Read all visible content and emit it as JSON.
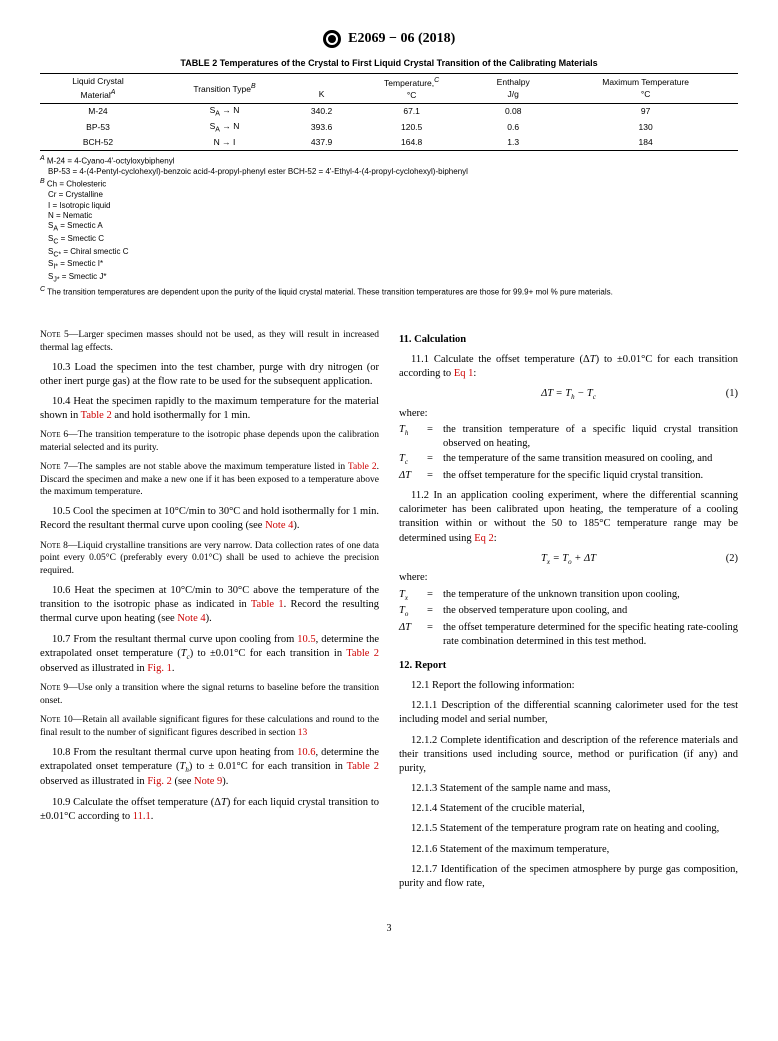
{
  "header": {
    "designation": "E2069 − 06 (2018)"
  },
  "table2": {
    "title": "TABLE 2 Temperatures of the Crystal to First Liquid Crystal Transition of the Calibrating Materials",
    "headers": {
      "c1a": "Liquid Crystal",
      "c1b": "Material",
      "c2": "Transition Type",
      "c3hdr": "Temperature,",
      "c3a": "K",
      "c3b": "°C",
      "c4a": "Enthalpy",
      "c4b": "J/g",
      "c5a": "Maximum Temperature",
      "c5b": "°C"
    },
    "rows": [
      {
        "mat": "M-24",
        "tt": "S",
        "ttsub": "A",
        "ttarrow": " → N",
        "k": "340.2",
        "c": "67.1",
        "e": "0.08",
        "mt": "97"
      },
      {
        "mat": "BP-53",
        "tt": "S",
        "ttsub": "A",
        "ttarrow": " → N",
        "k": "393.6",
        "c": "120.5",
        "e": "0.6",
        "mt": "130"
      },
      {
        "mat": "BCH-52",
        "tt": "N → I",
        "ttsub": "",
        "ttarrow": "",
        "k": "437.9",
        "c": "164.8",
        "e": "1.3",
        "mt": "184"
      }
    ]
  },
  "footnotes": {
    "a_line1": " M-24 = 4-Cyano-4'-octyloxybiphenyl",
    "a_line2": "BP-53 = 4-(4-Pentyl-cyclohexyl)-benzoic acid-4-propyl-phenyl ester BCH-52 = 4'-Ethyl-4-(4-propyl-cyclohexyl)-biphenyl",
    "b_line1": " Ch = Cholesteric",
    "b_l2": "Cr = Crystalline",
    "b_l3": "I = Isotropic liquid",
    "b_l4": "N = Nematic",
    "b_l5a": "S",
    "b_l5b": " = Smectic A",
    "b_l6a": "S",
    "b_l6b": " = Smectic C",
    "b_l7a": "S",
    "b_l7b": " = Chiral smectic C",
    "b_l8a": "S",
    "b_l8b": " = Smectic I*",
    "b_l9a": "S",
    "b_l9b": " = Smectic J*",
    "c_line": " The transition temperatures are dependent upon the purity of the liquid crystal material. These transition temperatures are those for 99.9+ mol % pure materials."
  },
  "left": {
    "note5": "Larger specimen masses should not be used, as they will result in increased thermal lag effects.",
    "p103": "10.3 Load the specimen into the test chamber, purge with dry nitrogen (or other inert purge gas) at the flow rate to be used for the subsequent application.",
    "p104a": "10.4 Heat the specimen rapidly to the maximum temperature for the material shown in ",
    "p104b": " and hold isothermally for 1 min.",
    "note6": "The transition temperature to the isotropic phase depends upon the calibration material selected and its purity.",
    "note7a": "The samples are not stable above the maximum temperature listed in ",
    "note7b": ". Discard the specimen and make a new one if it has been exposed to a temperature above the maximum temperature.",
    "p105a": "10.5 Cool the specimen at 10°C/min to 30°C and hold isothermally for 1 min. Record the resultant thermal curve upon cooling (see ",
    "p105b": ").",
    "note8": "Liquid crystalline transitions are very narrow. Data collection rates of one data point every 0.05°C (preferably every 0.01°C) shall be used to achieve the precision required.",
    "p106a": "10.6 Heat the specimen at 10°C/min to 30°C above the temperature of the transition to the isotropic phase as indicated in ",
    "p106b": ". Record the resulting thermal curve upon heating (see ",
    "p106c": ").",
    "p107a": "10.7 From the resultant thermal curve upon cooling from ",
    "p107b": ", determine the extrapolated onset temperature (",
    "p107c": ") to ±0.01°C for each transition in ",
    "p107d": " observed as illustrated in ",
    "p107e": ".",
    "note9": "Use only a transition where the signal returns to baseline before the transition onset.",
    "note10a": "Retain all available significant figures for these calculations and round to the final result to the number of significant figures described in section ",
    "p108a": "10.8 From the resultant thermal curve upon heating from ",
    "p108b": ", determine the extrapolated onset temperature (",
    "p108c": ") to ± 0.01°C for each transition in ",
    "p108d": " observed as illustrated in ",
    "p108e": " (see ",
    "p108f": ").",
    "p109a": "10.9 Calculate the offset temperature (Δ",
    "p109b": ") for each liquid crystal transition to ±0.01°C according to ",
    "p109c": "."
  },
  "right": {
    "s11": "11. Calculation",
    "p111a": "11.1 Calculate the offset temperature (Δ",
    "p111b": ") to ±0.01°C for each transition according to ",
    "p111c": ":",
    "eq1": "ΔT = T",
    "eq1b": " − T",
    "eq1num": "(1)",
    "where": "where:",
    "def_th": "the transition temperature of a specific liquid crystal transition observed on heating,",
    "def_tc": "the temperature of the same transition measured on cooling, and",
    "def_dt": "the offset temperature for the specific liquid crystal transition.",
    "p112a": "11.2 In an application cooling experiment, where the differential scanning calorimeter has been calibrated upon heating, the temperature of a cooling transition within or without the 50 to 185°C temperature range may be determined using ",
    "p112b": ":",
    "eq2": "T",
    "eq2b": " = T",
    "eq2c": " + ΔT",
    "eq2num": "(2)",
    "def_tx": "the temperature of the unknown transition upon cooling,",
    "def_to": "the observed temperature upon cooling, and",
    "def_dt2": "the offset temperature determined for the specific heating rate-cooling rate combination determined in this test method.",
    "s12": "12. Report",
    "p121": "12.1 Report the following information:",
    "p1211": "12.1.1 Description of the differential scanning calorimeter used for the test including model and serial number,",
    "p1212": "12.1.2 Complete identification and description of the reference materials and their transitions used including source, method or purification (if any) and purity,",
    "p1213": "12.1.3 Statement of the sample name and mass,",
    "p1214": "12.1.4 Statement of the crucible material,",
    "p1215": "12.1.5 Statement of the temperature program rate on heating and cooling,",
    "p1216": "12.1.6 Statement of the maximum temperature,",
    "p1217": "12.1.7 Identification of the specimen atmosphere by purge gas composition, purity and flow rate,"
  },
  "refs": {
    "table2": "Table 2",
    "note4": "Note 4",
    "table1": "Table 1",
    "r105": "10.5",
    "r106": "10.6",
    "fig1": "Fig. 1",
    "fig2": "Fig. 2",
    "note9": "Note 9",
    "r111": "11.1",
    "r13": "13",
    "eq1": "Eq 1",
    "eq2": "Eq 2"
  },
  "pagenum": "3"
}
